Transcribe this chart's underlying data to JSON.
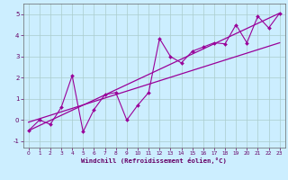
{
  "title": "",
  "xlabel": "Windchill (Refroidissement éolien,°C)",
  "ylabel": "",
  "background_color": "#cceeff",
  "line_color": "#990099",
  "xlim": [
    -0.5,
    23.5
  ],
  "ylim": [
    -1.3,
    5.5
  ],
  "xticks": [
    0,
    1,
    2,
    3,
    4,
    5,
    6,
    7,
    8,
    9,
    10,
    11,
    12,
    13,
    14,
    15,
    16,
    17,
    18,
    19,
    20,
    21,
    22,
    23
  ],
  "yticks": [
    -1,
    0,
    1,
    2,
    3,
    4,
    5
  ],
  "series1_x": [
    0,
    1,
    2,
    3,
    4,
    5,
    6,
    7,
    8,
    9,
    10,
    11,
    12,
    13,
    14,
    15,
    16,
    17,
    18,
    19,
    20,
    21,
    22,
    23
  ],
  "series1_y": [
    -0.5,
    0.0,
    -0.2,
    0.6,
    2.1,
    -0.55,
    0.5,
    1.2,
    1.3,
    0.0,
    0.7,
    1.3,
    3.85,
    3.0,
    2.7,
    3.25,
    3.45,
    3.65,
    3.6,
    4.5,
    3.65,
    4.9,
    4.35,
    5.05
  ],
  "series2_x": [
    0,
    23
  ],
  "series2_y": [
    -0.5,
    5.05
  ],
  "series3_x": [
    0,
    23
  ],
  "series3_y": [
    -0.1,
    3.65
  ],
  "grid_color": "#aacccc",
  "spine_color": "#666666",
  "font_color": "#660066",
  "tick_fontsize": 4.2,
  "xlabel_fontsize": 5.2
}
